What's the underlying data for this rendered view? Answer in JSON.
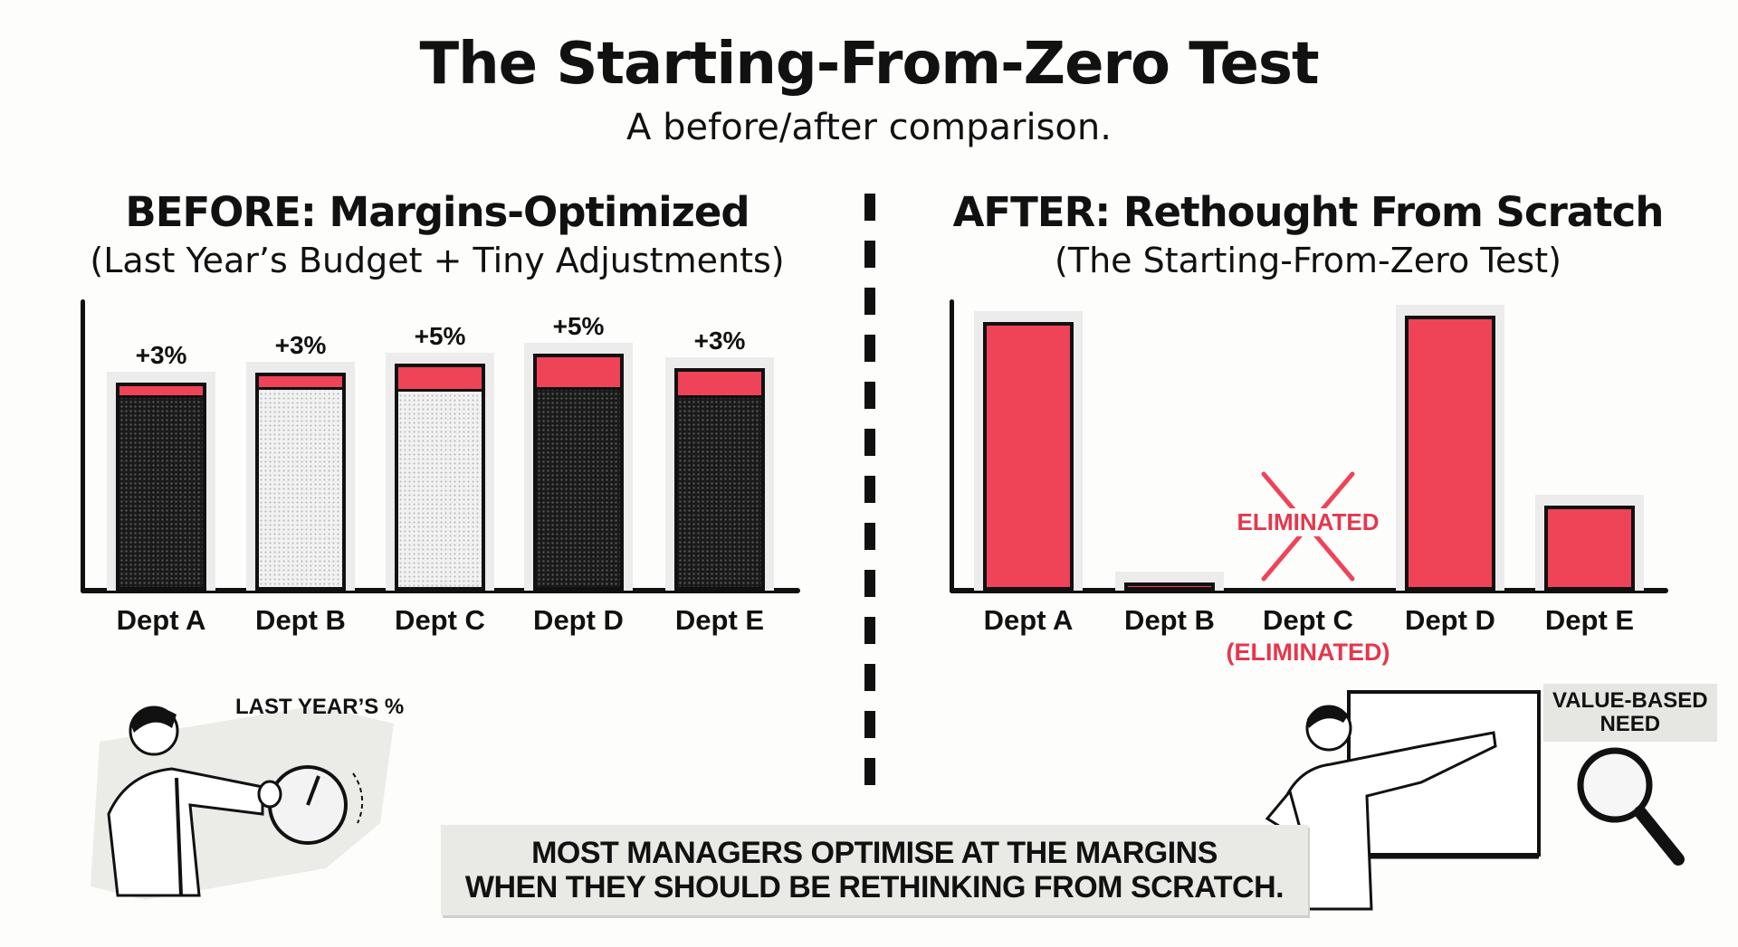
{
  "title": "The Starting-From-Zero Test",
  "subtitle": "A before/after comparison.",
  "chart_data": [
    {
      "type": "bar",
      "stacked": true,
      "title": "BEFORE: Margins-Optimized",
      "subtitle": "(Last Year’s Budget + Tiny Adjustments)",
      "categories": [
        "Dept A",
        "Dept B",
        "Dept C",
        "Dept D",
        "Dept E"
      ],
      "series": [
        {
          "values": [
            94,
            98,
            97,
            98,
            94
          ],
          "fills": [
            "dark",
            "light",
            "light",
            "dark",
            "dark"
          ]
        },
        {
          "values": [
            6,
            7,
            12,
            16,
            13
          ],
          "color": "#ef4358"
        }
      ],
      "data_labels": [
        "+3%",
        "+3%",
        "+5%",
        "+5%",
        "+3%"
      ],
      "ylim": [
        0,
        140
      ],
      "grid": false,
      "y_ticks": false
    },
    {
      "type": "bar",
      "title": "AFTER: Rethought From Scratch",
      "subtitle": "(The Starting-From-Zero Test)",
      "categories": [
        "Dept A",
        "Dept B",
        "Dept C",
        "Dept D",
        "Dept E"
      ],
      "values": [
        129,
        4,
        0,
        132,
        41
      ],
      "color": "#ef4358",
      "annotations": {
        "eliminated_marker": "ELIMINATED",
        "eliminated_sublabel": "(ELIMINATED)",
        "eliminated_index": 2
      },
      "ylim": [
        0,
        140
      ],
      "grid": false,
      "y_ticks": false
    }
  ],
  "illustrations": {
    "left_tag": "LAST YEAR’S %",
    "right_tag_line1": "VALUE-BASED",
    "right_tag_line2": "NEED"
  },
  "banner": {
    "line1": "MOST MANAGERS OPTIMISE AT THE MARGINS",
    "line2": "WHEN THEY SHOULD BE RETHINKING FROM SCRATCH."
  },
  "colors": {
    "accent": "#ef4358",
    "ink": "#111111"
  }
}
